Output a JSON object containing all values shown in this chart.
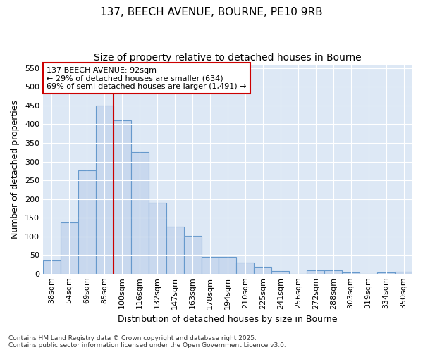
{
  "title": "137, BEECH AVENUE, BOURNE, PE10 9RB",
  "subtitle": "Size of property relative to detached houses in Bourne",
  "xlabel": "Distribution of detached houses by size in Bourne",
  "ylabel": "Number of detached properties",
  "categories": [
    "38sqm",
    "54sqm",
    "69sqm",
    "85sqm",
    "100sqm",
    "116sqm",
    "132sqm",
    "147sqm",
    "163sqm",
    "178sqm",
    "194sqm",
    "210sqm",
    "225sqm",
    "241sqm",
    "256sqm",
    "272sqm",
    "288sqm",
    "303sqm",
    "319sqm",
    "334sqm",
    "350sqm"
  ],
  "values": [
    35,
    137,
    277,
    450,
    410,
    325,
    190,
    125,
    102,
    45,
    45,
    30,
    18,
    7,
    0,
    8,
    8,
    4,
    0,
    4,
    5
  ],
  "bar_color": "#c8d8ee",
  "bar_edge_color": "#6699cc",
  "vline_color": "#cc0000",
  "vline_position": 3.5,
  "annotation_text": "137 BEECH AVENUE: 92sqm\n← 29% of detached houses are smaller (634)\n69% of semi-detached houses are larger (1,491) →",
  "annotation_box_color": "#ffffff",
  "annotation_box_edge": "#cc0000",
  "ylim": [
    0,
    560
  ],
  "yticks": [
    0,
    50,
    100,
    150,
    200,
    250,
    300,
    350,
    400,
    450,
    500,
    550
  ],
  "fig_bg_color": "#ffffff",
  "plot_bg_color": "#dde8f5",
  "grid_color": "#ffffff",
  "footer": "Contains HM Land Registry data © Crown copyright and database right 2025.\nContains public sector information licensed under the Open Government Licence v3.0.",
  "title_fontsize": 11,
  "subtitle_fontsize": 10,
  "tick_fontsize": 8,
  "ylabel_fontsize": 9,
  "xlabel_fontsize": 9,
  "footer_fontsize": 6.5
}
